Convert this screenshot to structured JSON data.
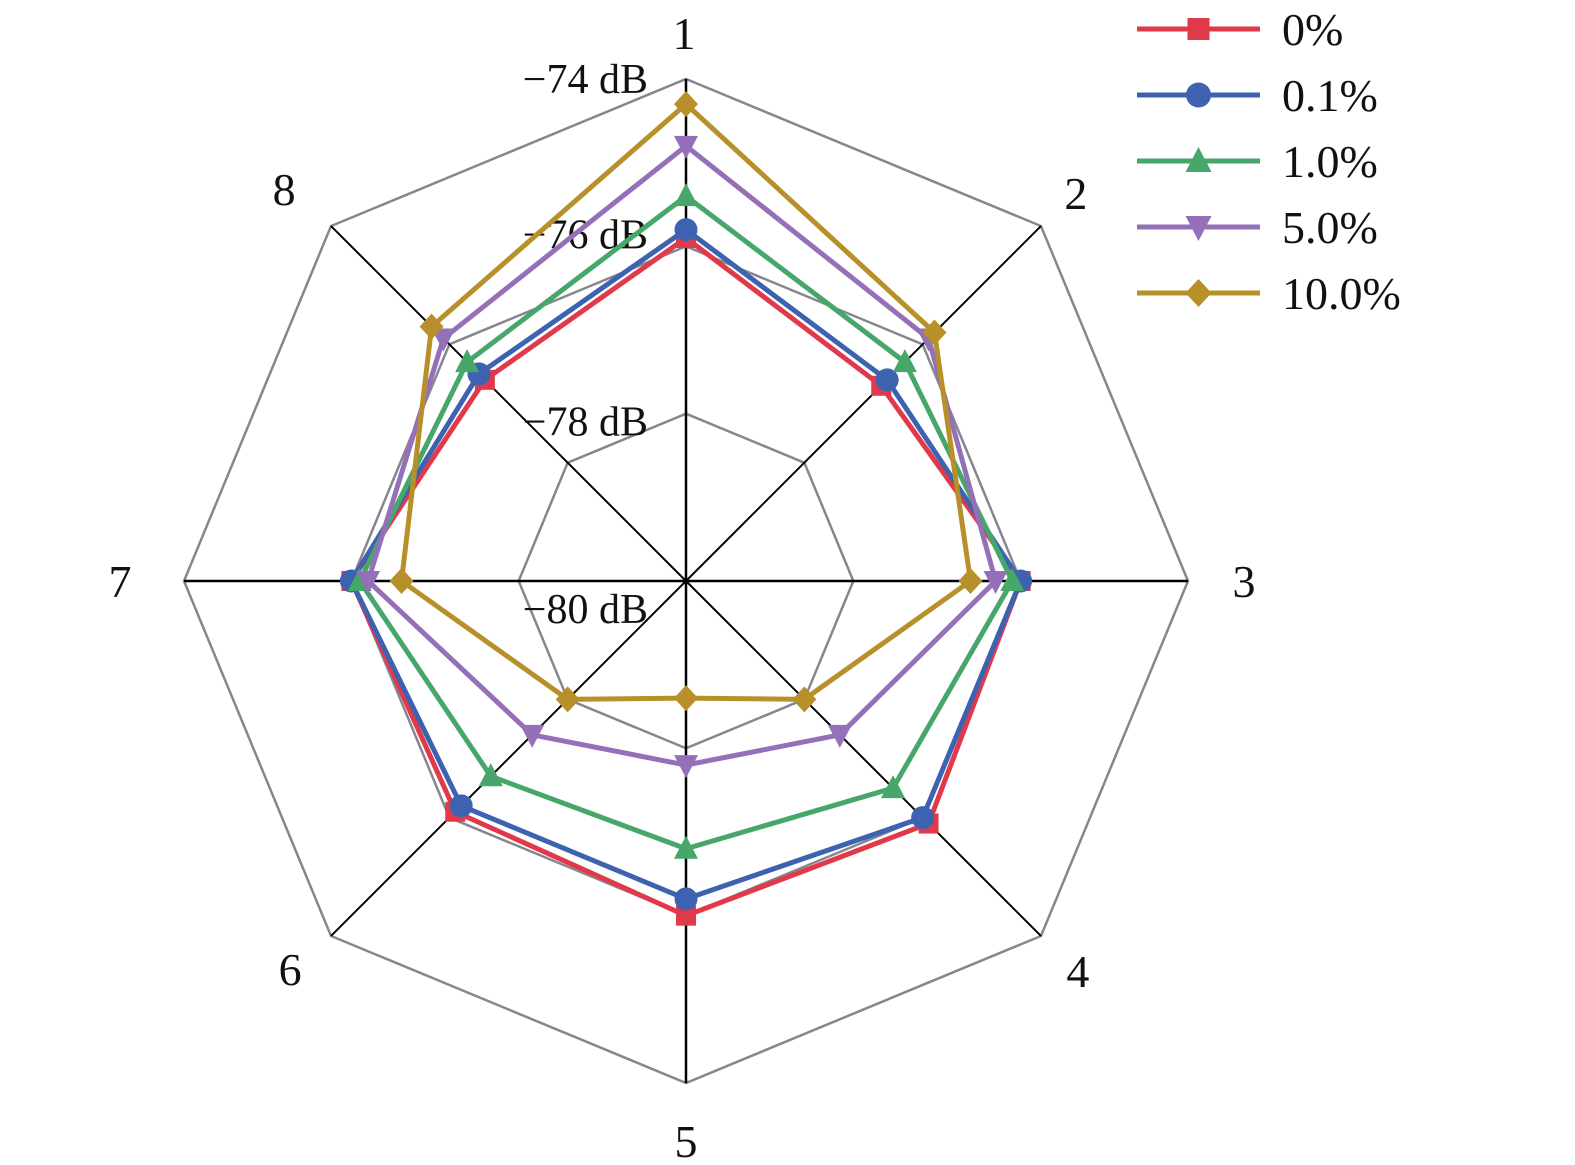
{
  "chart_data": {
    "type": "radar",
    "title": "",
    "categories": [
      "1",
      "2",
      "3",
      "4",
      "5",
      "6",
      "7",
      "8"
    ],
    "rlim": [
      -80,
      -74
    ],
    "ring_values": [
      -78,
      -76,
      -74
    ],
    "ring_labels": [
      {
        "value": -74,
        "label": "−74 dB"
      },
      {
        "value": -76,
        "label": "−76 dB"
      },
      {
        "value": -78,
        "label": "−78 dB"
      },
      {
        "value": -80,
        "label": "−80 dB"
      }
    ],
    "grid": true,
    "legend_position": "top-right",
    "series": [
      {
        "name": "0%",
        "color": "#e03a4a",
        "marker": "square",
        "values": [
          -75.9,
          -76.7,
          -76.0,
          -75.9,
          -76.0,
          -76.1,
          -76.0,
          -76.6
        ]
      },
      {
        "name": "0.1%",
        "color": "#3d63b0",
        "marker": "circle",
        "values": [
          -75.8,
          -76.6,
          -76.0,
          -76.0,
          -76.2,
          -76.2,
          -76.0,
          -76.5
        ]
      },
      {
        "name": "1.0%",
        "color": "#47a66a",
        "marker": "triangle-up",
        "values": [
          -75.4,
          -76.3,
          -76.1,
          -76.5,
          -76.8,
          -76.7,
          -76.1,
          -76.3
        ]
      },
      {
        "name": "5.0%",
        "color": "#9470b8",
        "marker": "triangle-down",
        "values": [
          -74.8,
          -75.9,
          -76.3,
          -77.4,
          -77.8,
          -77.4,
          -76.2,
          -75.9
        ]
      },
      {
        "name": "10.0%",
        "color": "#b8902a",
        "marker": "diamond",
        "values": [
          -74.3,
          -75.8,
          -76.6,
          -78.0,
          -78.6,
          -78.0,
          -76.6,
          -75.7
        ]
      }
    ]
  }
}
